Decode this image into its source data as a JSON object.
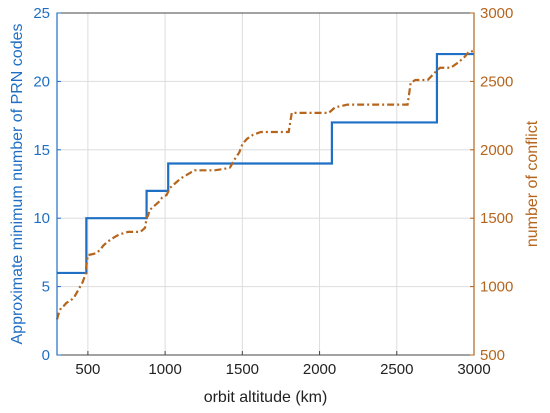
{
  "chart_data": {
    "type": "line",
    "xlabel": "orbit altitude (km)",
    "ylabel_left": "Approximate minimum number of PRN codes",
    "ylabel_right": "number of conflict",
    "xlim": [
      300,
      3000
    ],
    "ylim_left": [
      0,
      25
    ],
    "ylim_right": [
      500,
      3000
    ],
    "x_ticks": [
      500,
      1000,
      1500,
      2000,
      2500,
      3000
    ],
    "y_left_ticks": [
      0,
      5,
      10,
      15,
      20,
      25
    ],
    "y_right_ticks": [
      500,
      1000,
      1500,
      2000,
      2500,
      3000
    ],
    "grid": true,
    "series": [
      {
        "axis": "left",
        "style": "solid-step",
        "color": "#1f6fc4",
        "x": [
          300,
          490,
          490,
          880,
          880,
          1020,
          1020,
          2080,
          2080,
          2760,
          2760,
          3000
        ],
        "y": [
          6,
          6,
          10,
          10,
          12,
          12,
          14,
          14,
          17,
          17,
          22,
          22
        ]
      },
      {
        "axis": "right",
        "style": "dash-dot-step",
        "color": "#b5651d",
        "x": [
          300,
          310,
          320,
          330,
          345,
          360,
          375,
          390,
          410,
          430,
          450,
          465,
          475,
          485,
          490,
          500,
          540,
          560,
          580,
          600,
          630,
          670,
          700,
          730,
          760,
          800,
          840,
          870,
          880,
          890,
          900,
          920,
          940,
          960,
          980,
          1010,
          1030,
          1050,
          1070,
          1100,
          1130,
          1160,
          1190,
          1220,
          1260,
          1320,
          1380,
          1420,
          1430,
          1450,
          1480,
          1500,
          1530,
          1570,
          1620,
          1680,
          1750,
          1800,
          1820,
          2000,
          2060,
          2100,
          2180,
          2300,
          2400,
          2500,
          2570,
          2590,
          2620,
          2700,
          2760,
          2780,
          2800,
          2850,
          2900,
          2940,
          2970,
          3000
        ],
        "y": [
          760,
          800,
          830,
          850,
          860,
          880,
          890,
          900,
          920,
          960,
          1000,
          1030,
          1060,
          1090,
          1150,
          1230,
          1240,
          1250,
          1270,
          1300,
          1330,
          1360,
          1380,
          1390,
          1400,
          1400,
          1400,
          1430,
          1500,
          1520,
          1560,
          1580,
          1600,
          1620,
          1650,
          1670,
          1720,
          1740,
          1760,
          1790,
          1810,
          1830,
          1850,
          1850,
          1850,
          1850,
          1860,
          1870,
          1890,
          1930,
          1980,
          2040,
          2080,
          2110,
          2130,
          2130,
          2130,
          2130,
          2270,
          2270,
          2270,
          2310,
          2330,
          2330,
          2330,
          2330,
          2330,
          2490,
          2510,
          2510,
          2580,
          2600,
          2600,
          2600,
          2640,
          2680,
          2720,
          2720
        ]
      }
    ]
  }
}
